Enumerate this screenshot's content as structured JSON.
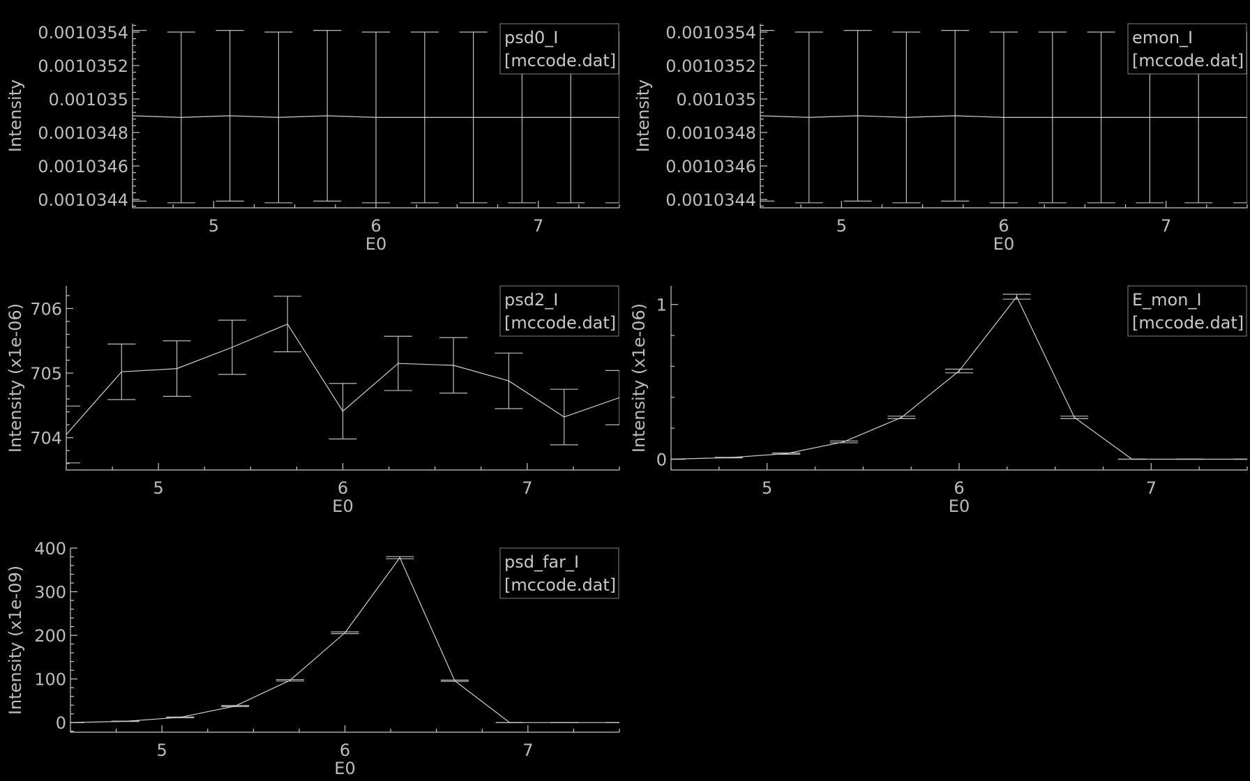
{
  "chart_data": [
    {
      "type": "line",
      "legend": [
        "psd0_I",
        "[mccode.dat]"
      ],
      "legend_position": "top-right",
      "xlabel": "E0",
      "ylabel": "Intensity",
      "xlim": [
        4.5,
        7.5
      ],
      "ylim": [
        0.00103435,
        0.00103545
      ],
      "xticks": [
        5,
        6,
        7
      ],
      "xtick_labels": [
        "5",
        "6",
        "7"
      ],
      "yticks": [
        0.0010344,
        0.0010346,
        0.0010348,
        0.001035,
        0.0010352,
        0.0010354
      ],
      "ytick_labels": [
        "0.0010344",
        "0.0010346",
        "0.0010348",
        "0.001035",
        "0.0010352",
        "0.0010354"
      ],
      "x": [
        4.5,
        4.8,
        5.1,
        5.4,
        5.7,
        6.0,
        6.3,
        6.6,
        6.9,
        7.2,
        7.5
      ],
      "values": [
        0.0010349,
        0.00103489,
        0.0010349,
        0.00103489,
        0.0010349,
        0.00103489,
        0.00103489,
        0.00103489,
        0.00103489,
        0.00103489,
        0.00103489
      ],
      "errors": [
        5.1e-07,
        5.1e-07,
        5.1e-07,
        5.1e-07,
        5.1e-07,
        5.1e-07,
        5.1e-07,
        5.1e-07,
        5.1e-07,
        5.1e-07,
        5.1e-07
      ]
    },
    {
      "type": "line",
      "legend": [
        "emon_I",
        "[mccode.dat]"
      ],
      "legend_position": "top-right",
      "xlabel": "E0",
      "ylabel": "Intensity",
      "xlim": [
        4.5,
        7.5
      ],
      "ylim": [
        0.00103435,
        0.00103545
      ],
      "xticks": [
        5,
        6,
        7
      ],
      "xtick_labels": [
        "5",
        "6",
        "7"
      ],
      "yticks": [
        0.0010344,
        0.0010346,
        0.0010348,
        0.001035,
        0.0010352,
        0.0010354
      ],
      "ytick_labels": [
        "0.0010344",
        "0.0010346",
        "0.0010348",
        "0.001035",
        "0.0010352",
        "0.0010354"
      ],
      "x": [
        4.5,
        4.8,
        5.1,
        5.4,
        5.7,
        6.0,
        6.3,
        6.6,
        6.9,
        7.2,
        7.5
      ],
      "values": [
        0.0010349,
        0.00103489,
        0.0010349,
        0.00103489,
        0.0010349,
        0.00103489,
        0.00103489,
        0.00103489,
        0.00103489,
        0.00103489,
        0.00103489
      ],
      "errors": [
        5.1e-07,
        5.1e-07,
        5.1e-07,
        5.1e-07,
        5.1e-07,
        5.1e-07,
        5.1e-07,
        5.1e-07,
        5.1e-07,
        5.1e-07,
        5.1e-07
      ]
    },
    {
      "type": "line",
      "legend": [
        "psd2_I",
        "[mccode.dat]"
      ],
      "legend_position": "top-right",
      "xlabel": "E0",
      "ylabel": "Intensity (x1e-06)",
      "xlim": [
        4.5,
        7.5
      ],
      "ylim": [
        703.5,
        706.35
      ],
      "xticks": [
        5,
        6,
        7
      ],
      "xtick_labels": [
        "5",
        "6",
        "7"
      ],
      "yticks": [
        704,
        705,
        706
      ],
      "ytick_labels": [
        "704",
        "705",
        "706"
      ],
      "x": [
        4.5,
        4.8,
        5.1,
        5.4,
        5.7,
        6.0,
        6.3,
        6.6,
        6.9,
        7.2,
        7.5
      ],
      "values": [
        704.05,
        705.02,
        705.07,
        705.4,
        705.76,
        704.41,
        705.15,
        705.12,
        704.88,
        704.32,
        704.62
      ],
      "errors": [
        0.44,
        0.43,
        0.43,
        0.42,
        0.43,
        0.43,
        0.42,
        0.43,
        0.43,
        0.43,
        0.42
      ]
    },
    {
      "type": "line",
      "legend": [
        "E_mon_I",
        "[mccode.dat]"
      ],
      "legend_position": "top-right",
      "xlabel": "E0",
      "ylabel": "Intensity (x1e-06)",
      "xlim": [
        4.5,
        7.5
      ],
      "ylim": [
        -0.07,
        1.12
      ],
      "xticks": [
        5,
        6,
        7
      ],
      "xtick_labels": [
        "5",
        "6",
        "7"
      ],
      "yticks": [
        0,
        1
      ],
      "ytick_labels": [
        "0",
        "1"
      ],
      "x": [
        4.5,
        4.8,
        5.1,
        5.4,
        5.7,
        6.0,
        6.3,
        6.6,
        6.9,
        7.2,
        7.5
      ],
      "values": [
        0.0,
        0.01,
        0.036,
        0.112,
        0.27,
        0.57,
        1.05,
        0.27,
        0.0,
        0.0,
        0.0
      ],
      "errors": [
        0.0,
        0.002,
        0.004,
        0.006,
        0.008,
        0.012,
        0.016,
        0.008,
        0.0,
        0.0,
        0.0
      ]
    },
    {
      "type": "line",
      "legend": [
        "psd_far_I",
        "[mccode.dat]"
      ],
      "legend_position": "top-right",
      "xlabel": "E0",
      "ylabel": "Intensity (x1e-09)",
      "xlim": [
        4.5,
        7.5
      ],
      "ylim": [
        -22,
        400
      ],
      "xticks": [
        5,
        6,
        7
      ],
      "xtick_labels": [
        "5",
        "6",
        "7"
      ],
      "yticks": [
        0,
        100,
        200,
        300,
        400
      ],
      "ytick_labels": [
        "0",
        "100",
        "200",
        "300",
        "400"
      ],
      "x": [
        4.5,
        4.8,
        5.1,
        5.4,
        5.7,
        6.0,
        6.3,
        6.6,
        6.9,
        7.2,
        7.5
      ],
      "values": [
        0.0,
        3.0,
        12.0,
        38.0,
        97.0,
        206.0,
        378.0,
        96.0,
        0.0,
        0.0,
        0.0
      ],
      "errors": [
        0.0,
        0.4,
        0.8,
        1.2,
        1.6,
        2.0,
        2.5,
        1.5,
        0.0,
        0.0,
        0.0
      ]
    }
  ]
}
